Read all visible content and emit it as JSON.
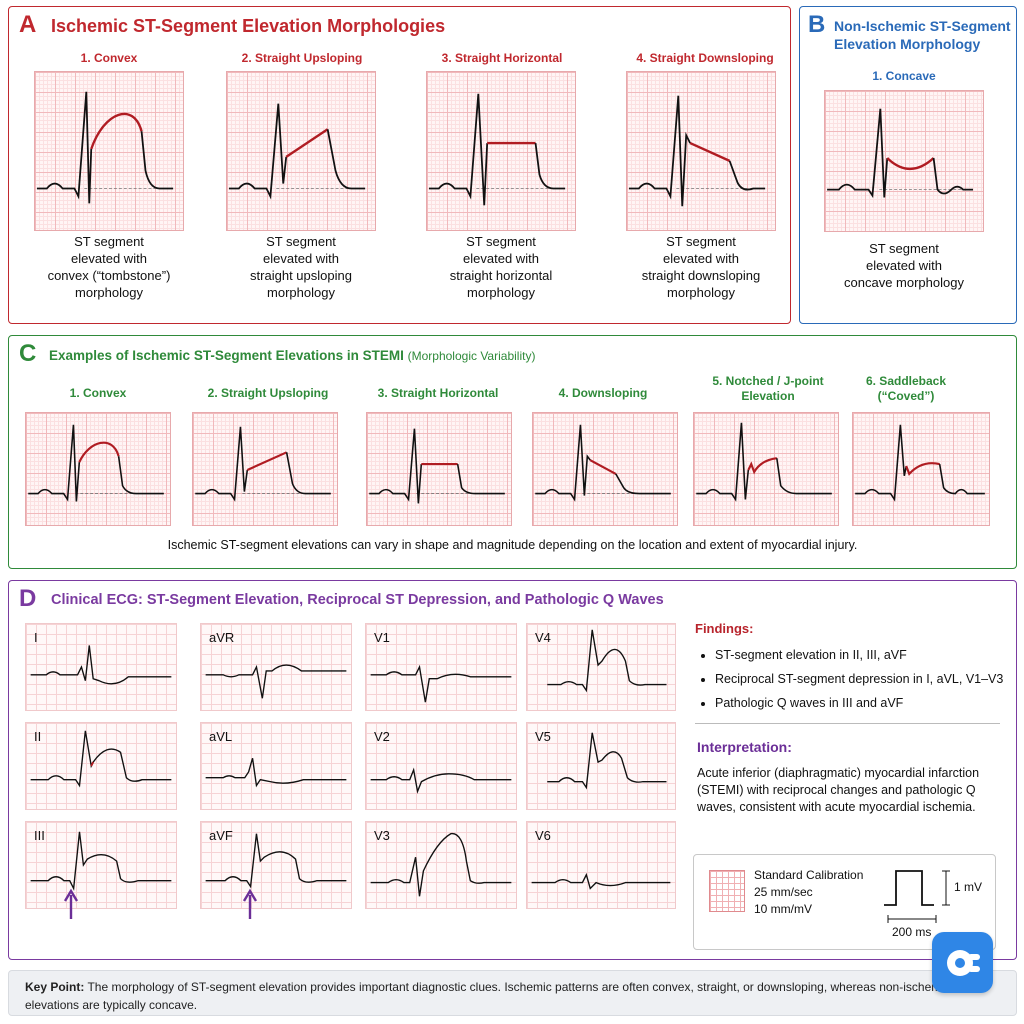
{
  "colors": {
    "ischemic_red": "#c0282e",
    "non_ischemic_blue": "#2a6ab8",
    "stemi_green": "#2f8a3a",
    "clinical_purple": "#7a3aa0",
    "st_segment": "#b01c22",
    "trace": "#111111"
  },
  "panel_a": {
    "letter": "A",
    "title": "Ischemic ST-Segment Elevation Morphologies",
    "items": [
      {
        "label": "1. Convex",
        "caption": [
          "ST segment",
          "elevated with",
          "convex (“tombstone”)",
          "morphology"
        ]
      },
      {
        "label": "2. Straight Upsloping",
        "caption": [
          "ST segment",
          "elevated with",
          "straight upsloping",
          "morphology"
        ]
      },
      {
        "label": "3. Straight Horizontal",
        "caption": [
          "ST segment",
          "elevated with",
          "straight horizontal",
          "morphology"
        ]
      },
      {
        "label": "4. Straight Downsloping",
        "caption": [
          "ST segment",
          "elevated with",
          "straight downsloping",
          "morphology"
        ]
      }
    ]
  },
  "panel_b": {
    "letter": "B",
    "title_line1": "Non-Ischemic ST-Segment",
    "title_line2": "Elevation Morphology",
    "label": "1. Concave",
    "caption": [
      "ST segment",
      "elevated with",
      "concave morphology"
    ]
  },
  "panel_c": {
    "letter": "C",
    "title": "Examples of Ischemic ST-Segment Elevations in STEMI",
    "title_suffix": "(Morphologic Variability)",
    "items": [
      {
        "label": [
          "1. Convex"
        ]
      },
      {
        "label": [
          "2. Straight Upsloping"
        ]
      },
      {
        "label": [
          "3. Straight Horizontal"
        ]
      },
      {
        "label": [
          "4. Downsloping"
        ]
      },
      {
        "label": [
          "5. Notched / J-point",
          "Elevation"
        ]
      },
      {
        "label": [
          "6. Saddleback",
          "(“Coved”)"
        ]
      }
    ],
    "footnote": "Ischemic ST-segment elevations can vary in shape and magnitude depending on the location and extent of myocardial injury."
  },
  "panel_d": {
    "letter": "D",
    "title": "Clinical ECG: ST-Segment Elevation, Reciprocal ST Depression, and Pathologic Q Waves",
    "leads": [
      "I",
      "aVR",
      "V1",
      "V4",
      "II",
      "aVL",
      "V2",
      "V5",
      "III",
      "aVF",
      "V3",
      "V6"
    ],
    "findings_title": "Findings:",
    "findings": [
      "ST-segment elevation in II, III, aVF",
      "Reciprocal ST-segment depression in I, aVL, V1–V3",
      "Pathologic Q waves in III and aVF"
    ],
    "interpretation_title": "Interpretation:",
    "interpretation": "Acute inferior (diaphragmatic) myocardial infarction (STEMI) with reciprocal changes and pathologic Q waves, consistent with acute myocardial ischemia.",
    "calibration": {
      "title": "Standard Calibration",
      "speed": "25 mm/sec",
      "gain": "10 mm/mV",
      "amplitude": "1 mV",
      "duration": "200 ms"
    }
  },
  "key_point": {
    "label": "Key Point:",
    "text": "The morphology of ST-segment elevation provides important diagnostic clues. Ischemic patterns are often convex, straight, or downsloping, whereas non-ischemic elevations are typically concave."
  }
}
